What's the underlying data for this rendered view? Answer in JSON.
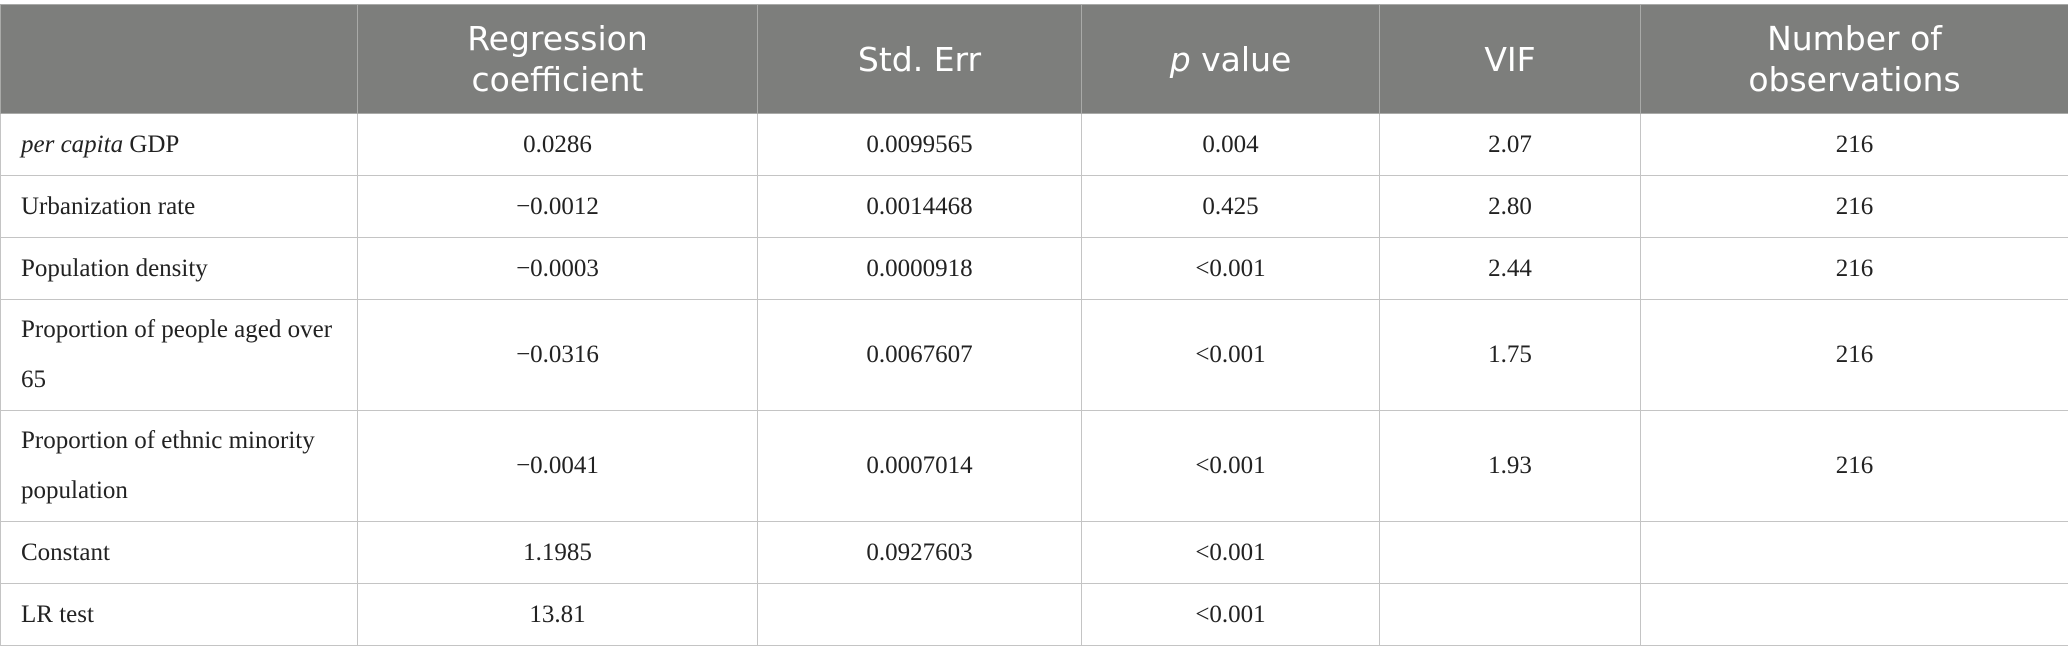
{
  "table": {
    "headers": {
      "row_label": "",
      "regression_coefficient": "Regression coefficient",
      "std_err": "Std. Err",
      "p_value_italic": "p",
      "p_value_rest": " value",
      "vif": "VIF",
      "observations": "Number of observations"
    },
    "rows": [
      {
        "label_italic": "per capita",
        "label": " GDP",
        "coef": "0.0286",
        "se": "0.0099565",
        "p": "0.004",
        "vif": "2.07",
        "n": "216"
      },
      {
        "label": "Urbanization rate",
        "coef": "−0.0012",
        "se": "0.0014468",
        "p": "0.425",
        "vif": "2.80",
        "n": "216"
      },
      {
        "label": "Population density",
        "coef": "−0.0003",
        "se": "0.0000918",
        "p": "<0.001",
        "vif": "2.44",
        "n": "216"
      },
      {
        "label": "Proportion of people aged over 65",
        "coef": "−0.0316",
        "se": "0.0067607",
        "p": "<0.001",
        "vif": "1.75",
        "n": "216"
      },
      {
        "label": "Proportion of ethnic minority population",
        "coef": "−0.0041",
        "se": "0.0007014",
        "p": "<0.001",
        "vif": "1.93",
        "n": "216"
      },
      {
        "label": "Constant",
        "coef": "1.1985",
        "se": "0.0927603",
        "p": "<0.001",
        "vif": "",
        "n": ""
      },
      {
        "label": "LR test",
        "coef": "13.81",
        "se": "",
        "p": "<0.001",
        "vif": "",
        "n": ""
      }
    ]
  },
  "colors": {
    "header_bg": "#7d7e7c",
    "header_text": "#ffffff",
    "grid": "#c4c4c4",
    "body_text": "#222222"
  }
}
